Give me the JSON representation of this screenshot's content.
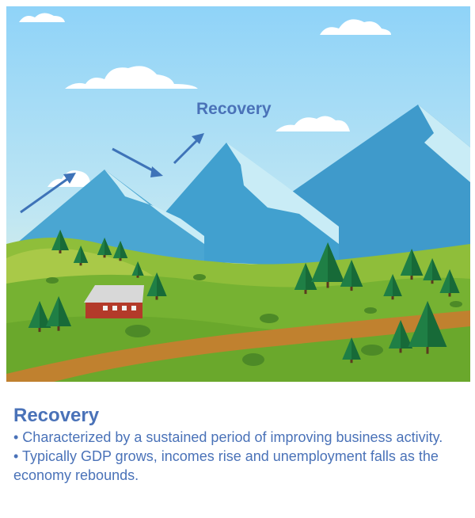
{
  "scene": {
    "label": "Recovery",
    "colors": {
      "sky_top": "#8fd3f8",
      "sky_bottom": "#e6f5dc",
      "mountain": "#41a0cf",
      "mountain_snow": "#c9ecf6",
      "grass": "#7ab535",
      "grass_light": "#9cc94a",
      "path": "#c0812f",
      "tree": "#1f7f45",
      "barn": "#b33a2a",
      "arrow": "#3e73b8"
    }
  },
  "caption": {
    "title": "Recovery",
    "bullets": [
      "•  Characterized by a sustained period of improving business activity.",
      "•  Typically GDP grows, incomes rise and unemployment falls as the economy rebounds."
    ]
  }
}
